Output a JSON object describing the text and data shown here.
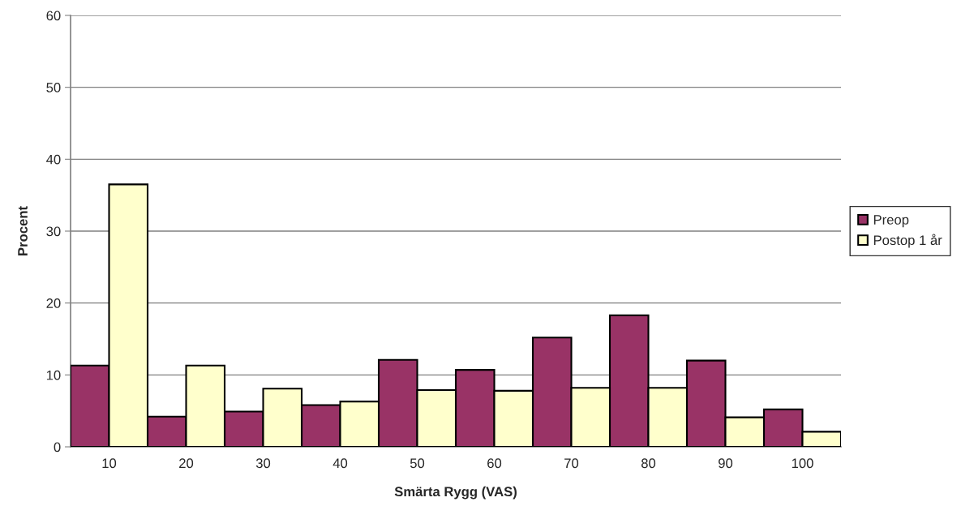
{
  "chart_data": {
    "type": "bar",
    "xlabel": "Smärta Rygg (VAS)",
    "ylabel": "Procent",
    "categories": [
      "10",
      "20",
      "30",
      "40",
      "50",
      "60",
      "70",
      "80",
      "90",
      "100"
    ],
    "series": [
      {
        "name": "Preop",
        "color": "#993366",
        "values": [
          11.3,
          4.2,
          4.9,
          5.8,
          12.1,
          10.7,
          15.2,
          18.3,
          12.0,
          5.2
        ]
      },
      {
        "name": "Postop 1 år",
        "color": "#ffffcc",
        "values": [
          36.5,
          11.3,
          8.1,
          6.3,
          7.9,
          7.8,
          8.2,
          8.2,
          4.1,
          2.1
        ]
      }
    ],
    "ylim": [
      0,
      60
    ],
    "yticks": [
      0,
      10,
      20,
      30,
      40,
      50,
      60
    ],
    "grid": "y",
    "legend": "right"
  }
}
